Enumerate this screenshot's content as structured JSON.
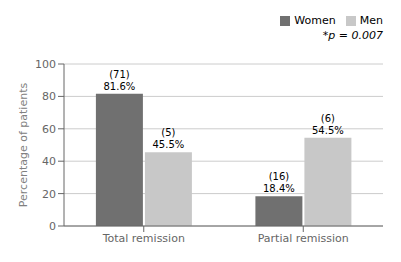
{
  "chart_data": {
    "type": "bar",
    "categories": [
      "Total remission",
      "Partial remission"
    ],
    "series": [
      {
        "name": "Women",
        "color": "#707070",
        "values": [
          81.6,
          18.4
        ],
        "value_labels": [
          "81.6%",
          "18.4%"
        ],
        "count_labels": [
          "(71)",
          "(16)"
        ]
      },
      {
        "name": "Men",
        "color": "#c8c8c8",
        "values": [
          45.5,
          54.5
        ],
        "value_labels": [
          "45.5%",
          "54.5%"
        ],
        "count_labels": [
          "(5)",
          "(6)"
        ]
      }
    ],
    "ylabel": "Percentage of patients",
    "annotation": "*p = 0.007",
    "ylim": [
      0,
      100
    ],
    "yticks": [
      0,
      20,
      40,
      60,
      80,
      100
    ],
    "grid": true,
    "legend": "upper right",
    "data_labels": true
  }
}
